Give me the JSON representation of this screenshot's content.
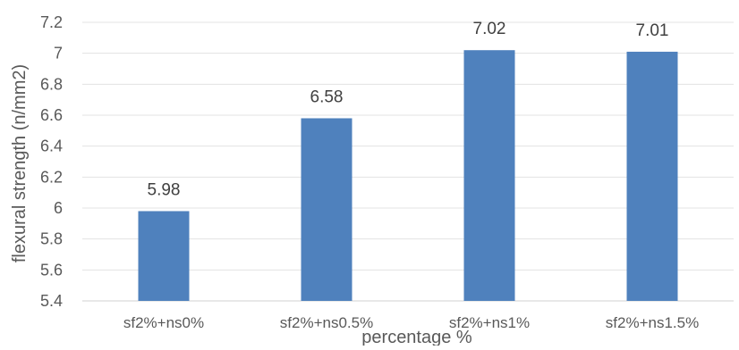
{
  "chart_data": {
    "type": "bar",
    "title": "",
    "xlabel": "percentage %",
    "ylabel": "flexural strength (n/mm2)",
    "categories": [
      "sf2%+ns0%",
      "sf2%+ns0.5%",
      "sf2%+ns1%",
      "sf2%+ns1.5%"
    ],
    "values": [
      5.98,
      6.58,
      7.02,
      7.01
    ],
    "data_labels": [
      "5.98",
      "6.58",
      "7.02",
      "7.01"
    ],
    "ylim": [
      5.4,
      7.2
    ],
    "yticks": [
      "5.4",
      "5.6",
      "5.8",
      "6",
      "6.2",
      "6.4",
      "6.6",
      "6.8",
      "7",
      "7.2"
    ],
    "grid": true,
    "legend": "none",
    "bar_color": "#4f81bd"
  }
}
